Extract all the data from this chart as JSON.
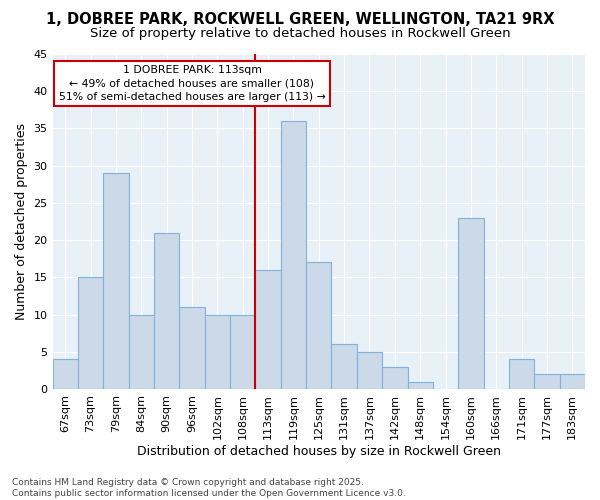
{
  "title_line1": "1, DOBREE PARK, ROCKWELL GREEN, WELLINGTON, TA21 9RX",
  "title_line2": "Size of property relative to detached houses in Rockwell Green",
  "xlabel": "Distribution of detached houses by size in Rockwell Green",
  "ylabel": "Number of detached properties",
  "footnote": "Contains HM Land Registry data © Crown copyright and database right 2025.\nContains public sector information licensed under the Open Government Licence v3.0.",
  "categories": [
    "67sqm",
    "73sqm",
    "79sqm",
    "84sqm",
    "90sqm",
    "96sqm",
    "102sqm",
    "108sqm",
    "113sqm",
    "119sqm",
    "125sqm",
    "131sqm",
    "137sqm",
    "142sqm",
    "148sqm",
    "154sqm",
    "160sqm",
    "166sqm",
    "171sqm",
    "177sqm",
    "183sqm"
  ],
  "values": [
    4,
    15,
    29,
    10,
    21,
    11,
    10,
    10,
    16,
    36,
    17,
    6,
    5,
    3,
    1,
    0,
    23,
    0,
    4,
    2,
    2
  ],
  "bar_color": "#ccd9e8",
  "bar_edge_color": "#7fb3d8",
  "highlight_index": 8,
  "highlight_line_color": "#cc0000",
  "annotation_text": "1 DOBREE PARK: 113sqm\n← 49% of detached houses are smaller (108)\n51% of semi-detached houses are larger (113) →",
  "annotation_box_color": "#ffffff",
  "annotation_box_edge": "#cc0000",
  "ylim": [
    0,
    45
  ],
  "yticks": [
    0,
    5,
    10,
    15,
    20,
    25,
    30,
    35,
    40,
    45
  ],
  "fig_bg": "#ffffff",
  "plot_bg": "#e8f0f8",
  "grid_color": "#ffffff",
  "title_fontsize": 10.5,
  "subtitle_fontsize": 9.5,
  "axis_label_fontsize": 9,
  "tick_fontsize": 8,
  "footnote_fontsize": 6.5
}
